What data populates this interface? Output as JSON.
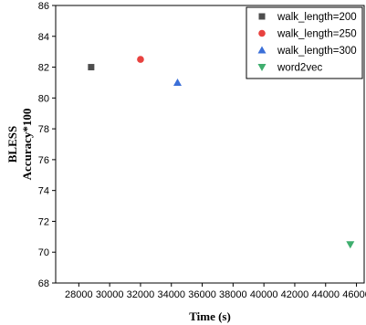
{
  "chart_data": {
    "type": "scatter",
    "title": "",
    "xlabel": "Time (s)",
    "ylabel": [
      "BLESS",
      "Accuracy*100"
    ],
    "xlim": [
      26500,
      46500
    ],
    "ylim": [
      68,
      86
    ],
    "xticks": [
      28000,
      30000,
      32000,
      34000,
      36000,
      38000,
      40000,
      42000,
      44000,
      46000
    ],
    "yticks": [
      68,
      70,
      72,
      74,
      76,
      78,
      80,
      82,
      84,
      86
    ],
    "grid": false,
    "legend_position": "top-right",
    "series": [
      {
        "name": "walk_length=200",
        "marker": "square",
        "color": "#4d4d4d",
        "points": [
          {
            "x": 28800,
            "y": 82.0
          }
        ]
      },
      {
        "name": "walk_length=250",
        "marker": "circle",
        "color": "#e8423f",
        "points": [
          {
            "x": 32000,
            "y": 82.5
          }
        ]
      },
      {
        "name": "walk_length=300",
        "marker": "triangle-up",
        "color": "#3b6fd8",
        "points": [
          {
            "x": 34400,
            "y": 81.0
          }
        ]
      },
      {
        "name": "word2vec",
        "marker": "triangle-down",
        "color": "#3fae6e",
        "points": [
          {
            "x": 45600,
            "y": 70.5
          }
        ]
      }
    ]
  }
}
